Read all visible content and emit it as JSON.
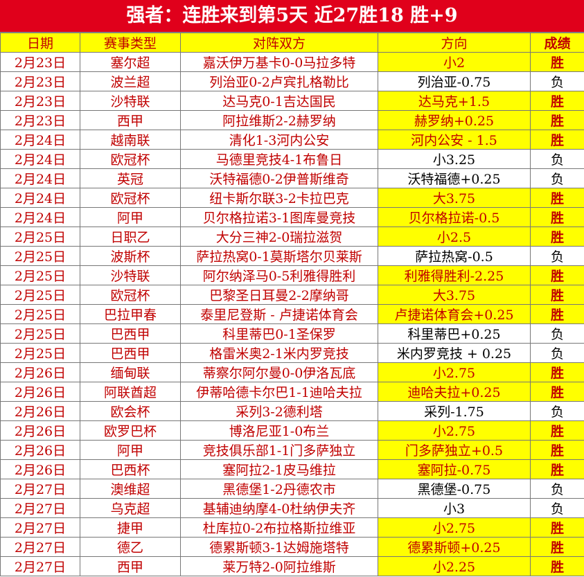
{
  "header": {
    "title": "强者：连胜来到第5天 近27胜18 胜+9"
  },
  "table": {
    "columns": [
      "日期",
      "赛事类型",
      "对阵双方",
      "方向",
      "成绩"
    ],
    "highlight_color": "#ffff00",
    "rows": [
      {
        "cells": [
          "2月23日",
          "塞尔超",
          "嘉沃伊万基卡0-0马拉多特",
          "小2",
          "胜"
        ],
        "highlight": true
      },
      {
        "cells": [
          "2月23日",
          "波兰超",
          "列治亚0-2卢宾扎格勒比",
          "列治亚-0.75",
          "负"
        ],
        "highlight": false
      },
      {
        "cells": [
          "2月23日",
          "沙特联",
          "达马克0-1吉达国民",
          "达马克+1.5",
          "胜"
        ],
        "highlight": true
      },
      {
        "cells": [
          "2月23日",
          "西甲",
          "阿拉维斯2-2赫罗纳",
          "赫罗纳+0.25",
          "胜"
        ],
        "highlight": true
      },
      {
        "cells": [
          "2月24日",
          "越南联",
          "清化1-3河内公安",
          "河内公安 - 1.5",
          "胜"
        ],
        "highlight": true
      },
      {
        "cells": [
          "2月24日",
          "欧冠杯",
          "马德里竞技4-1布鲁日",
          "小3.25",
          "负"
        ],
        "highlight": false
      },
      {
        "cells": [
          "2月24日",
          "英冠",
          "沃特福德0-2伊普斯维奇",
          "沃特福德+0.25",
          "负"
        ],
        "highlight": false
      },
      {
        "cells": [
          "2月24日",
          "欧冠杯",
          "纽卡斯尔联3-2卡拉巴克",
          "大3.75",
          "胜"
        ],
        "highlight": true
      },
      {
        "cells": [
          "2月24日",
          "阿甲",
          "贝尔格拉诺3-1图库曼竞技",
          "贝尔格拉诺-0.5",
          "胜"
        ],
        "highlight": true
      },
      {
        "cells": [
          "2月25日",
          "日职乙",
          "大分三神2-0瑞拉滋贺",
          "小2.5",
          "胜"
        ],
        "highlight": true
      },
      {
        "cells": [
          "2月25日",
          "波斯杯",
          "萨拉热窝0-1莫斯塔尔贝莱斯",
          "萨拉热窝-0.5",
          "负"
        ],
        "highlight": false
      },
      {
        "cells": [
          "2月25日",
          "沙特联",
          "阿尔纳泽马0-5利雅得胜利",
          "利雅得胜利-2.25",
          "胜"
        ],
        "highlight": true
      },
      {
        "cells": [
          "2月25日",
          "欧冠杯",
          "巴黎圣日耳曼2-2摩纳哥",
          "大3.75",
          "胜"
        ],
        "highlight": true
      },
      {
        "cells": [
          "2月25日",
          "巴拉甲春",
          "泰里尼登斯 - 卢捷诺体育会",
          "卢捷诺体育会+0.25",
          "胜"
        ],
        "highlight": true
      },
      {
        "cells": [
          "2月25日",
          "巴西甲",
          "科里蒂巴0-1圣保罗",
          "科里蒂巴+0.25",
          "负"
        ],
        "highlight": false
      },
      {
        "cells": [
          "2月25日",
          "巴西甲",
          "格雷米奥2-1米内罗竞技",
          "米内罗竞技 + 0.25",
          "负"
        ],
        "highlight": false
      },
      {
        "cells": [
          "2月26日",
          "缅甸联",
          "蒂察尔阿尔曼0-0伊洛瓦底",
          "小2.75",
          "胜"
        ],
        "highlight": true
      },
      {
        "cells": [
          "2月26日",
          "阿联酋超",
          "伊蒂哈德卡尔巴1-1迪哈夫拉",
          "迪哈夫拉+0.25",
          "胜"
        ],
        "highlight": true
      },
      {
        "cells": [
          "2月26日",
          "欧会杯",
          "采列3-2德利塔",
          "采列-1.75",
          "负"
        ],
        "highlight": false
      },
      {
        "cells": [
          "2月26日",
          "欧罗巴杯",
          "博洛尼亚1-0布兰",
          "小2.75",
          "胜"
        ],
        "highlight": true
      },
      {
        "cells": [
          "2月26日",
          "阿甲",
          "竞技俱乐部1-1门多萨独立",
          "门多萨独立+0.5",
          "胜"
        ],
        "highlight": true
      },
      {
        "cells": [
          "2月26日",
          "巴西杯",
          "塞阿拉2-1皮马维拉",
          "塞阿拉-0.75",
          "胜"
        ],
        "highlight": true
      },
      {
        "cells": [
          "2月27日",
          "澳维超",
          "黑德堡1-2丹德农市",
          "黑德堡-0.75",
          "负"
        ],
        "highlight": false
      },
      {
        "cells": [
          "2月27日",
          "乌克超",
          "基辅迪纳摩4-0杜纳伊夫齐",
          "小3",
          "负"
        ],
        "highlight": false
      },
      {
        "cells": [
          "2月27日",
          "捷甲",
          "杜库拉0-2布拉格斯拉维亚",
          "小2.75",
          "胜"
        ],
        "highlight": true
      },
      {
        "cells": [
          "2月27日",
          "德乙",
          "德累斯顿3-1达姆施塔特",
          "德累斯顿+0.25",
          "胜"
        ],
        "highlight": true
      },
      {
        "cells": [
          "2月27日",
          "西甲",
          "莱万特2-0阿拉维斯",
          "小2.25",
          "胜"
        ],
        "highlight": true
      }
    ]
  }
}
